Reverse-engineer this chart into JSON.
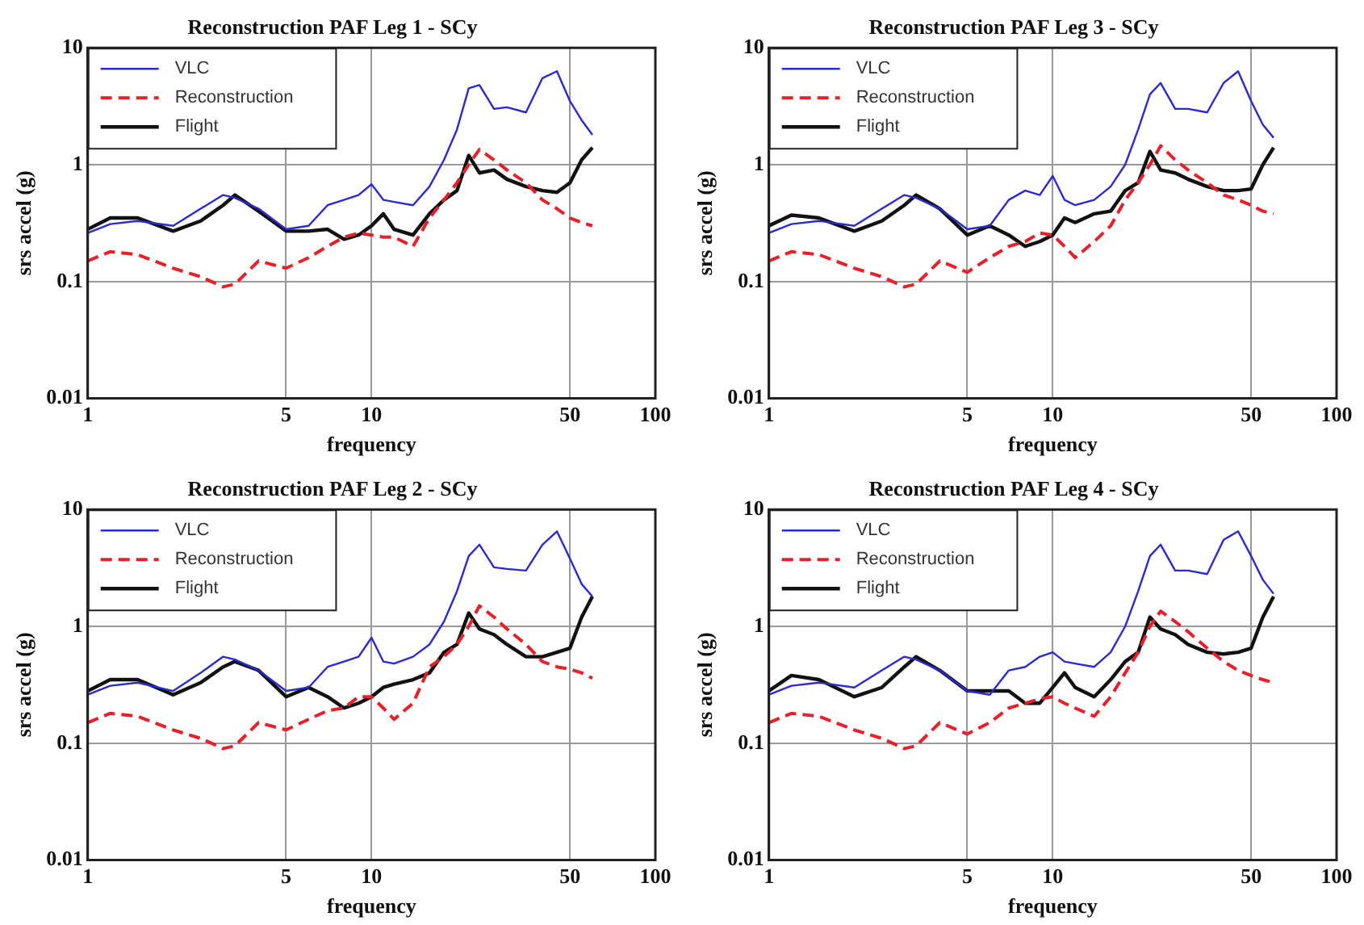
{
  "chart_data": [
    {
      "type": "line",
      "title": "Reconstruction PAF Leg 1 - SCy",
      "xlabel": "frequency",
      "ylabel": "srs accel (g)",
      "log": "xy",
      "xlim": [
        1,
        100
      ],
      "ylim": [
        0.01,
        10
      ],
      "xticks": [
        1,
        5,
        10,
        50,
        100
      ],
      "yticks": [
        0.01,
        0.1,
        1,
        10
      ],
      "grid": true,
      "legend": "top left",
      "x": [
        1,
        1.2,
        1.5,
        2,
        2.5,
        3,
        3.3,
        4,
        5,
        6,
        7,
        8,
        9,
        10,
        11,
        12,
        14,
        16,
        18,
        20,
        22,
        24,
        27,
        30,
        35,
        40,
        45,
        50,
        55,
        60
      ],
      "series": [
        {
          "name": "VLC",
          "color": "#2a2ad0",
          "line_style": "solid",
          "values": [
            0.26,
            0.31,
            0.33,
            0.3,
            0.42,
            0.55,
            0.52,
            0.42,
            0.28,
            0.3,
            0.45,
            0.5,
            0.55,
            0.68,
            0.5,
            0.48,
            0.45,
            0.65,
            1.1,
            2,
            4.5,
            4.8,
            3,
            3.1,
            2.8,
            5.5,
            6.3,
            3.5,
            2.4,
            1.8
          ]
        },
        {
          "name": "Reconstruction",
          "color": "#e8202a",
          "line_style": "dashed",
          "values": [
            0.15,
            0.18,
            0.17,
            0.13,
            0.11,
            0.09,
            0.095,
            0.15,
            0.13,
            0.16,
            0.2,
            0.24,
            0.26,
            0.25,
            0.24,
            0.24,
            0.2,
            0.35,
            0.5,
            0.7,
            1.0,
            1.35,
            1.1,
            0.9,
            0.7,
            0.5,
            0.42,
            0.35,
            0.32,
            0.3
          ]
        },
        {
          "name": "Flight",
          "color": "#111111",
          "line_style": "solid",
          "values": [
            0.28,
            0.35,
            0.35,
            0.27,
            0.33,
            0.45,
            0.55,
            0.4,
            0.27,
            0.27,
            0.28,
            0.23,
            0.25,
            0.3,
            0.38,
            0.28,
            0.25,
            0.38,
            0.5,
            0.6,
            1.2,
            0.85,
            0.9,
            0.75,
            0.65,
            0.6,
            0.58,
            0.7,
            1.1,
            1.4
          ]
        }
      ]
    },
    {
      "type": "line",
      "title": "Reconstruction PAF Leg 3 - SCy",
      "xlabel": "frequency",
      "ylabel": "srs accel (g)",
      "log": "xy",
      "xlim": [
        1,
        100
      ],
      "ylim": [
        0.01,
        10
      ],
      "xticks": [
        1,
        5,
        10,
        50,
        100
      ],
      "yticks": [
        0.01,
        0.1,
        1,
        10
      ],
      "grid": true,
      "legend": "top left",
      "x": [
        1,
        1.2,
        1.5,
        2,
        2.5,
        3,
        3.3,
        4,
        5,
        6,
        7,
        8,
        9,
        10,
        11,
        12,
        14,
        16,
        18,
        20,
        22,
        24,
        27,
        30,
        35,
        40,
        45,
        50,
        55,
        60
      ],
      "series": [
        {
          "name": "VLC",
          "color": "#2a2ad0",
          "line_style": "solid",
          "values": [
            0.26,
            0.31,
            0.33,
            0.3,
            0.42,
            0.55,
            0.52,
            0.42,
            0.28,
            0.3,
            0.5,
            0.6,
            0.55,
            0.8,
            0.5,
            0.45,
            0.5,
            0.65,
            1.0,
            2,
            4,
            5,
            3,
            3,
            2.8,
            5,
            6.3,
            3.5,
            2.2,
            1.7
          ]
        },
        {
          "name": "Reconstruction",
          "color": "#e8202a",
          "line_style": "dashed",
          "values": [
            0.15,
            0.18,
            0.17,
            0.13,
            0.11,
            0.09,
            0.095,
            0.15,
            0.12,
            0.16,
            0.2,
            0.22,
            0.26,
            0.25,
            0.2,
            0.16,
            0.22,
            0.3,
            0.5,
            0.7,
            1.0,
            1.45,
            1.1,
            0.9,
            0.7,
            0.55,
            0.5,
            0.45,
            0.4,
            0.38
          ]
        },
        {
          "name": "Flight",
          "color": "#111111",
          "line_style": "solid",
          "values": [
            0.3,
            0.37,
            0.35,
            0.27,
            0.33,
            0.45,
            0.55,
            0.42,
            0.25,
            0.3,
            0.25,
            0.2,
            0.22,
            0.25,
            0.35,
            0.32,
            0.38,
            0.4,
            0.6,
            0.7,
            1.3,
            0.9,
            0.85,
            0.75,
            0.65,
            0.6,
            0.6,
            0.62,
            1.0,
            1.4
          ]
        }
      ]
    },
    {
      "type": "line",
      "title": "Reconstruction PAF Leg 2 - SCy",
      "xlabel": "frequency",
      "ylabel": "srs accel (g)",
      "log": "xy",
      "xlim": [
        1,
        100
      ],
      "ylim": [
        0.01,
        10
      ],
      "xticks": [
        1,
        5,
        10,
        50,
        100
      ],
      "yticks": [
        0.01,
        0.1,
        1,
        10
      ],
      "grid": true,
      "legend": "top left",
      "x": [
        1,
        1.2,
        1.5,
        2,
        2.5,
        3,
        3.3,
        4,
        5,
        6,
        7,
        8,
        9,
        10,
        11,
        12,
        14,
        16,
        18,
        20,
        22,
        24,
        27,
        30,
        35,
        40,
        45,
        50,
        55,
        60
      ],
      "series": [
        {
          "name": "VLC",
          "color": "#2a2ad0",
          "line_style": "solid",
          "values": [
            0.26,
            0.31,
            0.33,
            0.28,
            0.4,
            0.55,
            0.52,
            0.42,
            0.28,
            0.3,
            0.45,
            0.5,
            0.55,
            0.8,
            0.5,
            0.48,
            0.55,
            0.7,
            1.1,
            2,
            4,
            5,
            3.2,
            3.1,
            3,
            5,
            6.5,
            3.8,
            2.3,
            1.8
          ]
        },
        {
          "name": "Reconstruction",
          "color": "#e8202a",
          "line_style": "dashed",
          "values": [
            0.15,
            0.18,
            0.17,
            0.13,
            0.11,
            0.09,
            0.095,
            0.15,
            0.13,
            0.16,
            0.19,
            0.2,
            0.25,
            0.25,
            0.2,
            0.16,
            0.22,
            0.45,
            0.55,
            0.7,
            1.0,
            1.5,
            1.2,
            0.95,
            0.7,
            0.5,
            0.45,
            0.43,
            0.4,
            0.36
          ]
        },
        {
          "name": "Flight",
          "color": "#111111",
          "line_style": "solid",
          "values": [
            0.28,
            0.35,
            0.35,
            0.26,
            0.33,
            0.45,
            0.5,
            0.42,
            0.25,
            0.3,
            0.25,
            0.2,
            0.22,
            0.25,
            0.3,
            0.32,
            0.35,
            0.4,
            0.6,
            0.7,
            1.3,
            0.95,
            0.85,
            0.7,
            0.55,
            0.55,
            0.6,
            0.65,
            1.2,
            1.8
          ]
        }
      ]
    },
    {
      "type": "line",
      "title": "Reconstruction PAF Leg 4 - SCy",
      "xlabel": "frequency",
      "ylabel": "srs accel (g)",
      "log": "xy",
      "xlim": [
        1,
        100
      ],
      "ylim": [
        0.01,
        10
      ],
      "xticks": [
        1,
        5,
        10,
        50,
        100
      ],
      "yticks": [
        0.01,
        0.1,
        1,
        10
      ],
      "grid": true,
      "legend": "top left",
      "x": [
        1,
        1.2,
        1.5,
        2,
        2.5,
        3,
        3.3,
        4,
        5,
        6,
        7,
        8,
        9,
        10,
        11,
        12,
        14,
        16,
        18,
        20,
        22,
        24,
        27,
        30,
        35,
        40,
        45,
        50,
        55,
        60
      ],
      "series": [
        {
          "name": "VLC",
          "color": "#2a2ad0",
          "line_style": "solid",
          "values": [
            0.26,
            0.31,
            0.33,
            0.3,
            0.42,
            0.55,
            0.52,
            0.42,
            0.28,
            0.26,
            0.42,
            0.45,
            0.55,
            0.6,
            0.5,
            0.48,
            0.45,
            0.6,
            1.0,
            2,
            4,
            5,
            3,
            3,
            2.8,
            5.5,
            6.5,
            4,
            2.5,
            1.9
          ]
        },
        {
          "name": "Reconstruction",
          "color": "#e8202a",
          "line_style": "dashed",
          "values": [
            0.15,
            0.18,
            0.17,
            0.13,
            0.11,
            0.09,
            0.095,
            0.15,
            0.12,
            0.15,
            0.2,
            0.22,
            0.24,
            0.25,
            0.22,
            0.2,
            0.17,
            0.25,
            0.4,
            0.6,
            1.0,
            1.35,
            1.1,
            0.9,
            0.65,
            0.5,
            0.42,
            0.38,
            0.35,
            0.33
          ]
        },
        {
          "name": "Flight",
          "color": "#111111",
          "line_style": "solid",
          "values": [
            0.28,
            0.38,
            0.35,
            0.25,
            0.3,
            0.45,
            0.55,
            0.42,
            0.28,
            0.28,
            0.28,
            0.22,
            0.22,
            0.3,
            0.4,
            0.3,
            0.25,
            0.35,
            0.5,
            0.6,
            1.2,
            0.95,
            0.85,
            0.7,
            0.6,
            0.58,
            0.6,
            0.65,
            1.2,
            1.8
          ]
        }
      ]
    }
  ]
}
